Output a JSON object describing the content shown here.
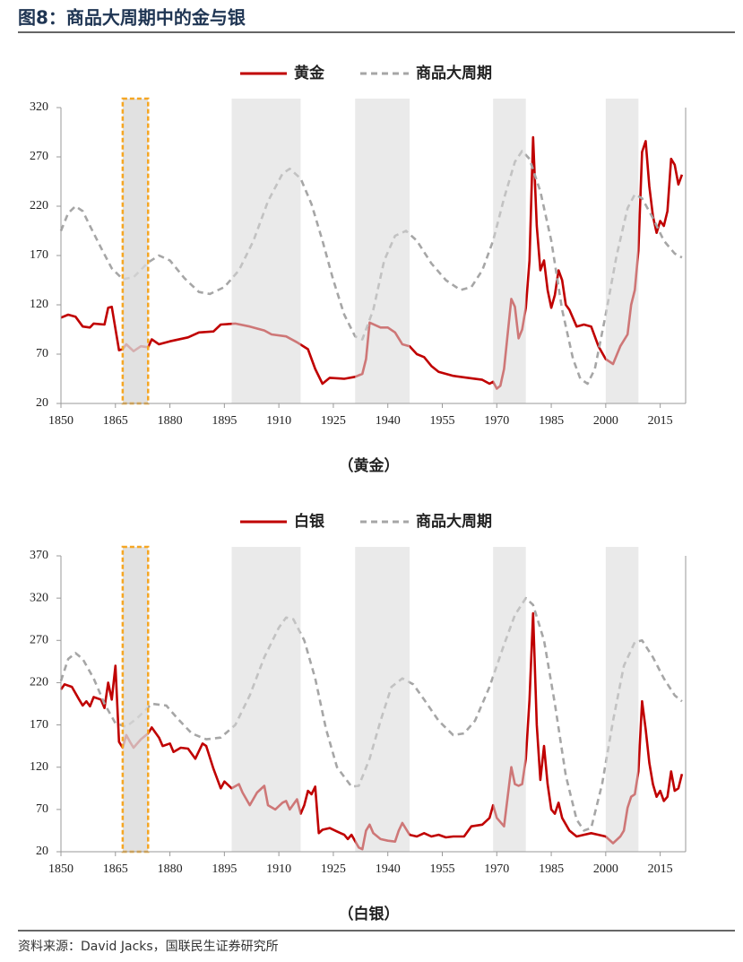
{
  "title": "图8：商品大周期中的金与银",
  "source": "资料来源：David Jacks，国联民生证券研究所",
  "chart_data": [
    {
      "type": "line",
      "caption": "（黄金）",
      "legend": "top",
      "xlim": [
        1850,
        2022
      ],
      "xticks": [
        1850,
        1865,
        1880,
        1895,
        1910,
        1925,
        1940,
        1955,
        1970,
        1985,
        2000,
        2015
      ],
      "ylim": [
        20,
        320
      ],
      "yticks": [
        20,
        70,
        120,
        170,
        220,
        270,
        320
      ],
      "shaded_periods": [
        [
          1897,
          1916
        ],
        [
          1931,
          1946
        ],
        [
          1969,
          1978
        ],
        [
          2000,
          2009
        ]
      ],
      "highlight_period": [
        1867,
        1874
      ],
      "series": [
        {
          "name": "黄金",
          "color": "#c00000",
          "style": "solid",
          "x": [
            1850,
            1852,
            1854,
            1856,
            1858,
            1859,
            1862,
            1863,
            1864,
            1866,
            1867,
            1868,
            1870,
            1872,
            1874,
            1875,
            1877,
            1880,
            1885,
            1888,
            1892,
            1894,
            1898,
            1902,
            1906,
            1908,
            1912,
            1915,
            1918,
            1920,
            1922,
            1924,
            1928,
            1931,
            1933,
            1934,
            1935,
            1938,
            1940,
            1942,
            1944,
            1946,
            1948,
            1950,
            1952,
            1954,
            1958,
            1962,
            1966,
            1968,
            1969,
            1970,
            1971,
            1972,
            1974,
            1975,
            1976,
            1977,
            1978,
            1979,
            1980,
            1981,
            1982,
            1983,
            1984,
            1985,
            1986,
            1987,
            1988,
            1989,
            1990,
            1992,
            1994,
            1996,
            1998,
            2000,
            2002,
            2004,
            2006,
            2007,
            2008,
            2009,
            2010,
            2011,
            2012,
            2013,
            2014,
            2015,
            2016,
            2017,
            2018,
            2019,
            2020,
            2021
          ],
          "values": [
            107,
            110,
            108,
            98,
            97,
            101,
            100,
            117,
            118,
            74,
            75,
            80,
            73,
            78,
            77,
            85,
            80,
            83,
            87,
            92,
            93,
            100,
            101,
            98,
            94,
            90,
            88,
            82,
            75,
            55,
            40,
            46,
            45,
            47,
            50,
            65,
            102,
            97,
            97,
            92,
            80,
            78,
            70,
            67,
            58,
            52,
            48,
            46,
            44,
            40,
            42,
            35,
            38,
            55,
            126,
            118,
            86,
            95,
            117,
            165,
            290,
            200,
            155,
            165,
            135,
            117,
            130,
            155,
            145,
            120,
            115,
            98,
            100,
            98,
            78,
            65,
            60,
            78,
            90,
            120,
            135,
            175,
            275,
            286,
            240,
            210,
            193,
            205,
            200,
            215,
            268,
            262,
            242,
            252
          ]
        },
        {
          "name": "商品大周期",
          "color": "#a6a6a6",
          "style": "dashed",
          "x": [
            1850,
            1852,
            1854,
            1856,
            1858,
            1861,
            1864,
            1867,
            1870,
            1874,
            1877,
            1880,
            1884,
            1888,
            1891,
            1895,
            1899,
            1903,
            1907,
            1911,
            1913,
            1916,
            1919,
            1922,
            1925,
            1928,
            1931,
            1933,
            1936,
            1939,
            1942,
            1945,
            1948,
            1952,
            1956,
            1960,
            1963,
            1966,
            1969,
            1972,
            1975,
            1977,
            1979,
            1982,
            1985,
            1988,
            1991,
            1993,
            1995,
            1997,
            2000,
            2003,
            2006,
            2008,
            2010,
            2013,
            2016,
            2019,
            2021
          ],
          "values": [
            195,
            213,
            220,
            215,
            200,
            178,
            157,
            146,
            148,
            163,
            170,
            165,
            147,
            133,
            131,
            138,
            155,
            185,
            225,
            253,
            258,
            248,
            222,
            185,
            145,
            110,
            88,
            85,
            115,
            165,
            190,
            195,
            185,
            162,
            145,
            135,
            138,
            155,
            185,
            228,
            265,
            276,
            268,
            235,
            185,
            115,
            65,
            45,
            40,
            55,
            110,
            170,
            218,
            232,
            228,
            208,
            185,
            172,
            168
          ]
        }
      ]
    },
    {
      "type": "line",
      "caption": "（白银）",
      "legend": "top",
      "xlim": [
        1850,
        2022
      ],
      "xticks": [
        1850,
        1865,
        1880,
        1895,
        1910,
        1925,
        1940,
        1955,
        1970,
        1985,
        2000,
        2015
      ],
      "ylim": [
        20,
        370
      ],
      "yticks": [
        20,
        70,
        120,
        170,
        220,
        270,
        320,
        370
      ],
      "shaded_periods": [
        [
          1897,
          1916
        ],
        [
          1931,
          1946
        ],
        [
          1969,
          1978
        ],
        [
          2000,
          2009
        ]
      ],
      "highlight_period": [
        1867,
        1874
      ],
      "series": [
        {
          "name": "白银",
          "color": "#c00000",
          "style": "solid",
          "x": [
            1850,
            1851,
            1853,
            1855,
            1856,
            1857,
            1858,
            1859,
            1861,
            1862,
            1863,
            1864,
            1865,
            1866,
            1867,
            1868,
            1869,
            1870,
            1872,
            1874,
            1875,
            1877,
            1878,
            1880,
            1881,
            1883,
            1885,
            1887,
            1889,
            1890,
            1892,
            1894,
            1895,
            1897,
            1899,
            1900,
            1902,
            1904,
            1906,
            1907,
            1909,
            1911,
            1912,
            1913,
            1915,
            1916,
            1917,
            1918,
            1919,
            1920,
            1921,
            1922,
            1924,
            1926,
            1928,
            1929,
            1930,
            1932,
            1933,
            1934,
            1935,
            1936,
            1938,
            1940,
            1942,
            1943,
            1944,
            1946,
            1948,
            1950,
            1952,
            1954,
            1956,
            1958,
            1961,
            1963,
            1966,
            1968,
            1969,
            1970,
            1972,
            1974,
            1975,
            1976,
            1977,
            1978,
            1979,
            1980,
            1981,
            1982,
            1983,
            1984,
            1985,
            1986,
            1987,
            1988,
            1990,
            1992,
            1994,
            1996,
            1998,
            2000,
            2002,
            2004,
            2005,
            2006,
            2007,
            2008,
            2009,
            2010,
            2011,
            2012,
            2013,
            2014,
            2015,
            2016,
            2017,
            2018,
            2019,
            2020,
            2021
          ],
          "values": [
            212,
            218,
            215,
            200,
            193,
            198,
            192,
            203,
            200,
            190,
            220,
            200,
            240,
            150,
            143,
            158,
            150,
            143,
            153,
            160,
            167,
            155,
            145,
            148,
            138,
            143,
            142,
            130,
            148,
            145,
            118,
            95,
            103,
            95,
            100,
            90,
            75,
            90,
            98,
            75,
            70,
            78,
            80,
            70,
            82,
            65,
            75,
            92,
            88,
            97,
            42,
            46,
            48,
            44,
            40,
            35,
            40,
            25,
            23,
            45,
            52,
            42,
            35,
            33,
            32,
            45,
            54,
            40,
            38,
            42,
            38,
            40,
            37,
            38,
            38,
            50,
            52,
            60,
            75,
            60,
            50,
            120,
            100,
            98,
            100,
            130,
            200,
            302,
            170,
            105,
            145,
            100,
            70,
            65,
            78,
            60,
            45,
            38,
            40,
            42,
            40,
            38,
            30,
            38,
            45,
            72,
            85,
            88,
            115,
            198,
            165,
            125,
            100,
            85,
            92,
            80,
            85,
            115,
            92,
            95,
            112
          ]
        },
        {
          "name": "商品大周期",
          "color": "#a6a6a6",
          "style": "dashed",
          "x": [
            1850,
            1852,
            1854,
            1856,
            1859,
            1862,
            1865,
            1868,
            1871,
            1875,
            1879,
            1882,
            1886,
            1890,
            1894,
            1898,
            1902,
            1906,
            1910,
            1912,
            1914,
            1917,
            1920,
            1923,
            1926,
            1930,
            1932,
            1935,
            1938,
            1941,
            1944,
            1947,
            1950,
            1954,
            1958,
            1961,
            1964,
            1968,
            1972,
            1975,
            1978,
            1980,
            1983,
            1986,
            1989,
            1992,
            1994,
            1996,
            1999,
            2002,
            2005,
            2008,
            2010,
            2013,
            2016,
            2019,
            2021
          ],
          "values": [
            222,
            248,
            255,
            248,
            225,
            195,
            172,
            168,
            178,
            195,
            193,
            178,
            160,
            153,
            155,
            170,
            205,
            250,
            285,
            297,
            295,
            270,
            225,
            165,
            120,
            97,
            98,
            130,
            175,
            215,
            225,
            218,
            200,
            175,
            158,
            160,
            175,
            215,
            265,
            300,
            320,
            312,
            270,
            195,
            110,
            58,
            45,
            48,
            100,
            175,
            240,
            268,
            270,
            250,
            225,
            205,
            198
          ]
        }
      ]
    }
  ]
}
